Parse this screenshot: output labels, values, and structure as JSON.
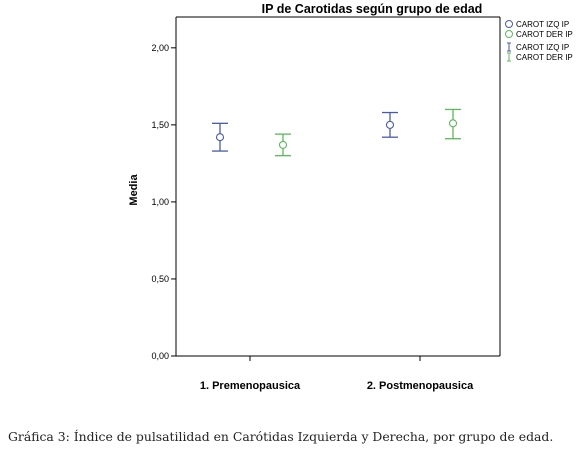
{
  "chart_data": {
    "type": "errorbar",
    "title": "IP de Carotidas según grupo de edad",
    "ylabel": "Media",
    "xlabel": "",
    "ylim": [
      0,
      2.2
    ],
    "yticks": [
      0,
      0.5,
      1.0,
      1.5,
      2.0
    ],
    "ytick_labels": [
      "0,00",
      "0,50",
      "1,00",
      "1,50",
      "2,00"
    ],
    "categories": [
      "1. Premenopausica",
      "2. Postmenopausica"
    ],
    "grid": false,
    "legend_position": "top-right",
    "legend": [
      {
        "label": "CAROT IZQ IP",
        "kind": "marker",
        "series": 0
      },
      {
        "label": "CAROT DER IP",
        "kind": "marker",
        "series": 1
      },
      {
        "label": "CAROT IZQ IP",
        "kind": "errorbar",
        "series": 0
      },
      {
        "label": "CAROT DER IP",
        "kind": "errorbar",
        "series": 1
      }
    ],
    "series": [
      {
        "name": "CAROT IZQ IP",
        "color": "#4a5aa8",
        "mean": [
          1.42,
          1.5
        ],
        "lower": [
          1.33,
          1.42
        ],
        "upper": [
          1.51,
          1.58
        ]
      },
      {
        "name": "CAROT DER IP",
        "color": "#5cb85c",
        "mean": [
          1.37,
          1.51
        ],
        "lower": [
          1.3,
          1.41
        ],
        "upper": [
          1.44,
          1.6
        ]
      }
    ]
  },
  "caption": "Gráfica 3: Índice de pulsatilidad en Carótidas Izquierda y Derecha, por grupo de edad."
}
